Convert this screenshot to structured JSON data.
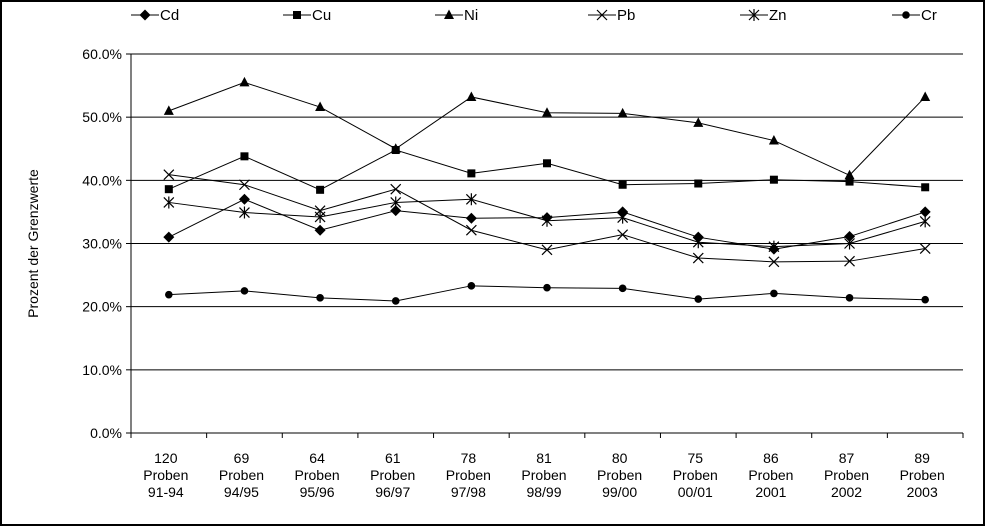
{
  "chart_data": {
    "type": "line",
    "title": "",
    "xlabel": "",
    "ylabel": "Prozent der Grenzwerte",
    "ylim": [
      0,
      0.6
    ],
    "yticks": [
      "0.0%",
      "10.0%",
      "20.0%",
      "30.0%",
      "40.0%",
      "50.0%",
      "60.0%"
    ],
    "grid": "horizontal",
    "legend_position": "top",
    "categories": [
      [
        "120",
        "Proben",
        "91-94"
      ],
      [
        "69",
        "Proben",
        "94/95"
      ],
      [
        "64",
        "Proben",
        "95/96"
      ],
      [
        "61",
        "Proben",
        "96/97"
      ],
      [
        "78",
        "Proben",
        "97/98"
      ],
      [
        "81",
        "Proben",
        "98/99"
      ],
      [
        "80",
        "Proben",
        "99/00"
      ],
      [
        "75",
        "Proben",
        "00/01"
      ],
      [
        "86",
        "Proben",
        "2001"
      ],
      [
        "87",
        "Proben",
        "2002"
      ],
      [
        "89",
        "Proben",
        "2003"
      ]
    ],
    "series": [
      {
        "name": "Cd",
        "marker": "diamond",
        "values": [
          0.31,
          0.37,
          0.321,
          0.352,
          0.34,
          0.341,
          0.35,
          0.31,
          0.291,
          0.311,
          0.35
        ]
      },
      {
        "name": "Cu",
        "marker": "square",
        "values": [
          0.386,
          0.438,
          0.385,
          0.448,
          0.411,
          0.427,
          0.393,
          0.395,
          0.401,
          0.398,
          0.389
        ]
      },
      {
        "name": "Ni",
        "marker": "triangle",
        "values": [
          0.51,
          0.555,
          0.516,
          0.45,
          0.532,
          0.507,
          0.506,
          0.491,
          0.463,
          0.408,
          0.532
        ]
      },
      {
        "name": "Pb",
        "marker": "x",
        "values": [
          0.409,
          0.393,
          0.352,
          0.386,
          0.321,
          0.29,
          0.314,
          0.277,
          0.271,
          0.272,
          0.292
        ]
      },
      {
        "name": "Zn",
        "marker": "star",
        "values": [
          0.365,
          0.349,
          0.342,
          0.365,
          0.37,
          0.336,
          0.341,
          0.302,
          0.295,
          0.3,
          0.335
        ]
      },
      {
        "name": "Cr",
        "marker": "circle",
        "values": [
          0.219,
          0.225,
          0.214,
          0.209,
          0.233,
          0.23,
          0.229,
          0.212,
          0.221,
          0.214,
          0.211
        ]
      }
    ]
  }
}
